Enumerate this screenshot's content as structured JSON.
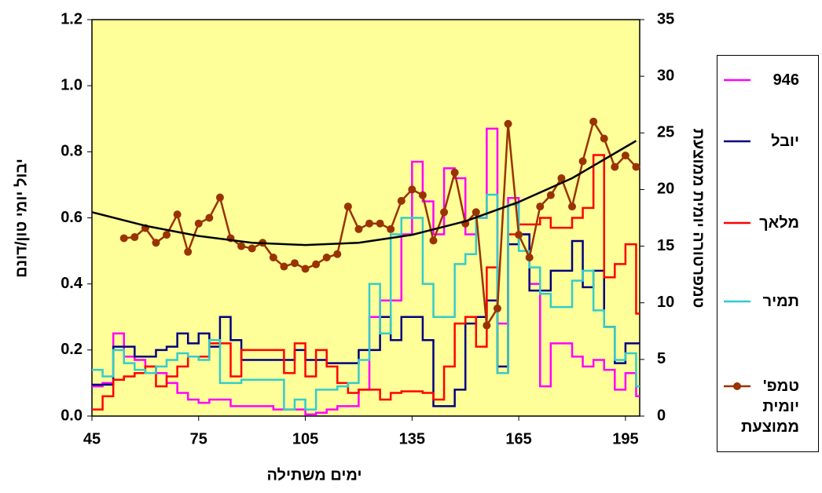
{
  "chart_data": {
    "type": "line",
    "x_label": "ימים משתילה",
    "y_label": "יבול יומי טון/דונם",
    "y2_label": "טמפרטורה יומית ממוצעת",
    "xlim": [
      45,
      199
    ],
    "xticks": [
      45,
      75,
      105,
      135,
      165,
      195
    ],
    "ylim": [
      0,
      1.2
    ],
    "yticks": [
      {
        "value": 0,
        "label": "0.0"
      },
      {
        "value": 0.2,
        "label": "0.2"
      },
      {
        "value": 0.4,
        "label": "0.4"
      },
      {
        "value": 0.6,
        "label": "0.6"
      },
      {
        "value": 0.8,
        "label": "0.8"
      },
      {
        "value": 1,
        "label": "1.0"
      },
      {
        "value": 1.2,
        "label": "1.2"
      }
    ],
    "y2lim": [
      0,
      35
    ],
    "y2ticks": [
      0,
      5,
      10,
      15,
      20,
      25,
      30,
      35
    ],
    "background": "#ffff99",
    "x": [
      45,
      48,
      51,
      54,
      57,
      60,
      63,
      66,
      69,
      72,
      75,
      78,
      81,
      84,
      87,
      90,
      93,
      96,
      99,
      102,
      105,
      108,
      111,
      114,
      117,
      120,
      123,
      126,
      129,
      132,
      135,
      138,
      141,
      144,
      147,
      150,
      153,
      156,
      159,
      162,
      165,
      168,
      171,
      174,
      177,
      180,
      183,
      186,
      189,
      192,
      195,
      198
    ],
    "series": [
      {
        "name": "946",
        "color": "#ff00ff",
        "step": true,
        "values": [
          0.09,
          0.1,
          0.25,
          0.18,
          0.17,
          0.15,
          0.13,
          0.1,
          0.07,
          0.05,
          0.04,
          0.05,
          0.05,
          0.03,
          0.03,
          0.03,
          0.03,
          0.02,
          0.02,
          0.02,
          0.005,
          0.01,
          0.02,
          0.03,
          0.03,
          0.08,
          0.3,
          0.35,
          0.35,
          0.55,
          0.77,
          0.65,
          0.55,
          0.75,
          0.72,
          0.55,
          0.6,
          0.87,
          0.28,
          0.66,
          0.55,
          0.4,
          0.09,
          0.22,
          0.22,
          0.18,
          0.15,
          0.17,
          0.14,
          0.08,
          0.13,
          0.06
        ]
      },
      {
        "name": "יובל",
        "color": "#000080",
        "step": true,
        "values": [
          0.095,
          0.095,
          0.21,
          0.21,
          0.18,
          0.18,
          0.2,
          0.21,
          0.25,
          0.22,
          0.25,
          0.21,
          0.3,
          0.23,
          0.17,
          0.17,
          0.17,
          0.17,
          0.17,
          0.2,
          0.17,
          0.17,
          0.16,
          0.16,
          0.16,
          0.2,
          0.2,
          0.3,
          0.23,
          0.3,
          0.3,
          0.23,
          0.03,
          0.03,
          0.08,
          0.28,
          0.3,
          0.35,
          0.15,
          0.52,
          0.55,
          0.38,
          0.38,
          0.44,
          0.44,
          0.53,
          0.39,
          0.44,
          0.27,
          0.16,
          0.22,
          0.22
        ]
      },
      {
        "name": "מלאך",
        "color": "#ff0000",
        "step": true,
        "values": [
          0.02,
          0.06,
          0.11,
          0.12,
          0.13,
          0.15,
          0.09,
          0.12,
          0.15,
          0.18,
          0.18,
          0.22,
          0.22,
          0.12,
          0.2,
          0.2,
          0.2,
          0.2,
          0.13,
          0.22,
          0.12,
          0.2,
          0.15,
          0.1,
          0.07,
          0.08,
          0.08,
          0.05,
          0.07,
          0.075,
          0.075,
          0.07,
          0.05,
          0.15,
          0.28,
          0.3,
          0.21,
          0.45,
          0.13,
          0.55,
          0.58,
          0.58,
          0.6,
          0.57,
          0.57,
          0.6,
          0.63,
          0.79,
          0.42,
          0.46,
          0.52,
          0.31
        ]
      },
      {
        "name": "תמיר",
        "color": "#33cccc",
        "step": true,
        "values": [
          0.14,
          0.12,
          0.2,
          0.16,
          0.14,
          0.13,
          0.15,
          0.17,
          0.19,
          0.18,
          0.17,
          0.23,
          0.1,
          0.1,
          0.11,
          0.11,
          0.11,
          0.11,
          0.02,
          0.05,
          0.02,
          0.08,
          0.08,
          0.09,
          0.1,
          0.17,
          0.4,
          0.25,
          0.55,
          0.6,
          0.6,
          0.4,
          0.3,
          0.3,
          0.46,
          0.49,
          0.6,
          0.67,
          0.13,
          0.64,
          0.5,
          0.45,
          0.37,
          0.33,
          0.33,
          0.41,
          0.44,
          0.32,
          0.27,
          0.17,
          0.19,
          0.09
        ]
      },
      {
        "name": "טמפ' יומית ממוצעת",
        "color": "#993300",
        "axis": "y2",
        "markers": true,
        "x": [
          54,
          57,
          60,
          63,
          66,
          69,
          72,
          75,
          78,
          81,
          84,
          87,
          90,
          93,
          96,
          99,
          102,
          105,
          108,
          111,
          114,
          117,
          120,
          123,
          126,
          129,
          132,
          135,
          138,
          141,
          144,
          147,
          150,
          153,
          156,
          159,
          162,
          165,
          168,
          171,
          174,
          177,
          180,
          183,
          186,
          189,
          192,
          195,
          198
        ],
        "values": [
          15.7,
          15.8,
          16.6,
          15.3,
          16,
          17.8,
          14.5,
          17,
          17.5,
          19.3,
          15.7,
          15,
          14.8,
          15.3,
          14,
          13.2,
          13.5,
          13,
          13.4,
          14,
          14.3,
          18.5,
          16.5,
          17,
          17,
          16.5,
          19,
          20,
          19.5,
          15.5,
          18,
          21.5,
          17,
          18,
          8,
          9.5,
          25.8,
          16,
          14,
          18.5,
          19.5,
          21,
          18.5,
          22.5,
          26,
          24.5,
          22,
          23,
          22
        ]
      }
    ],
    "trendline": {
      "color": "#000000",
      "axis": "y2",
      "x": [
        45,
        60,
        75,
        90,
        105,
        120,
        135,
        150,
        165,
        180,
        198
      ],
      "values": [
        18,
        16.8,
        15.9,
        15.3,
        15.1,
        15.3,
        16,
        17.2,
        18.9,
        21,
        24.3
      ]
    }
  }
}
